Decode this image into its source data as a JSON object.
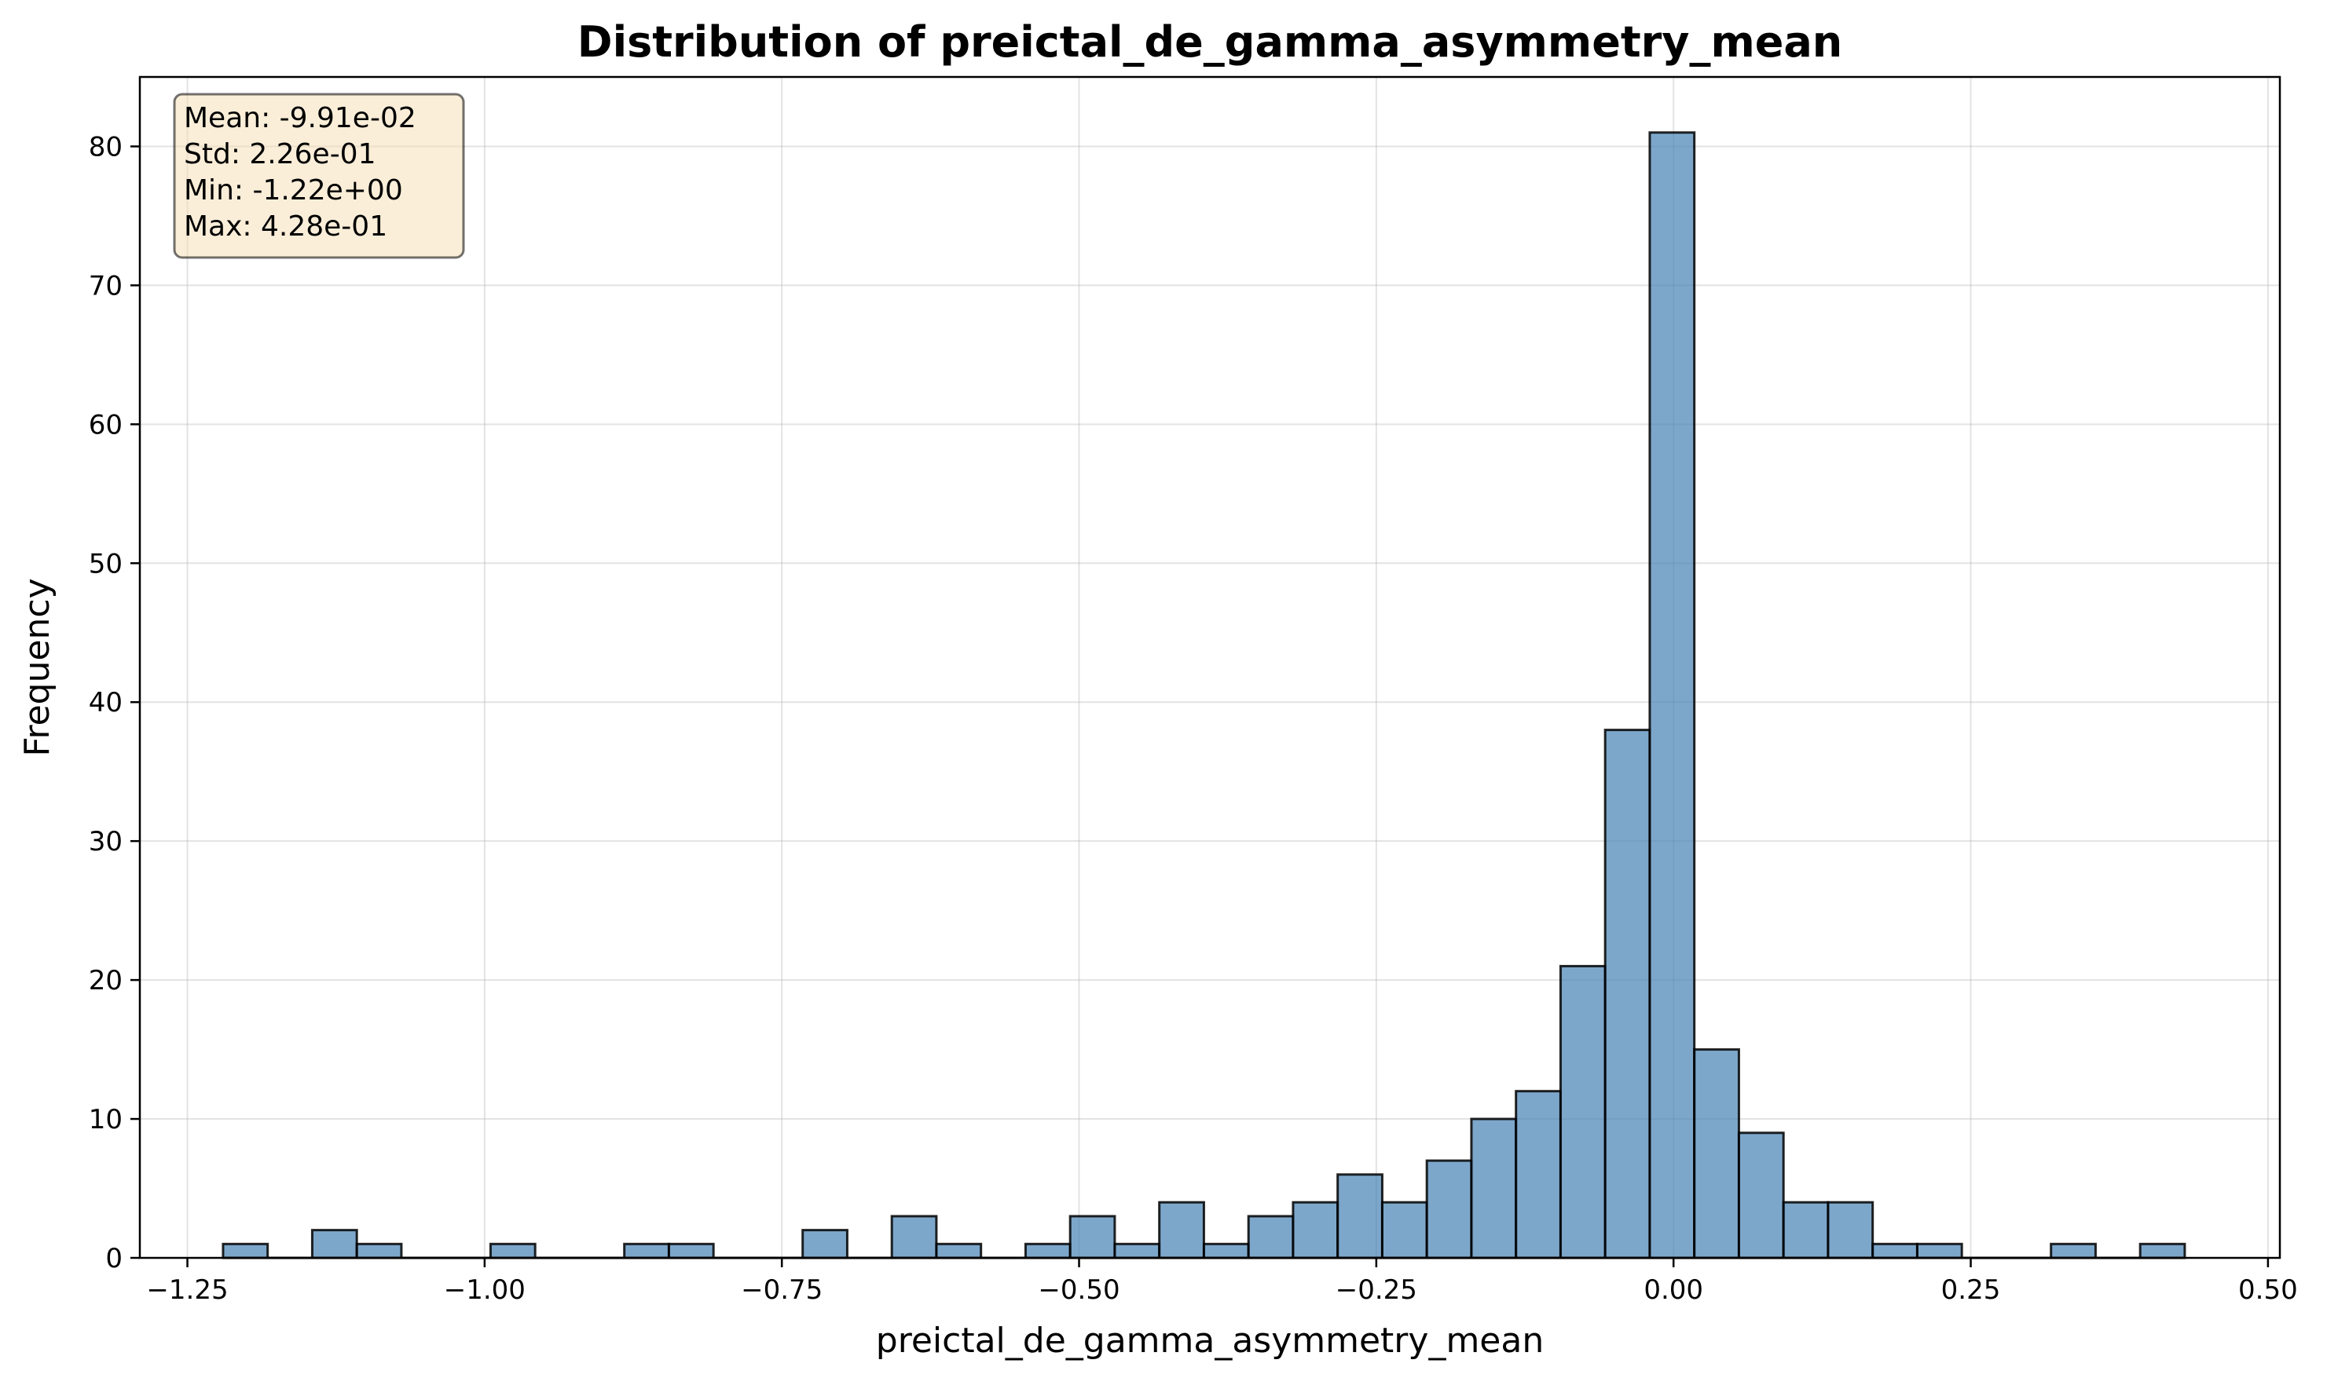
{
  "chart_data": {
    "type": "bar",
    "title": "Distribution of preictal_de_gamma_asymmetry_mean",
    "xlabel": "preictal_de_gamma_asymmetry_mean",
    "ylabel": "Frequency",
    "xlim": [
      -1.29,
      0.51
    ],
    "ylim": [
      0,
      85
    ],
    "xticks": [
      -1.25,
      -1.0,
      -0.75,
      -0.5,
      -0.25,
      0.0,
      0.25,
      0.5
    ],
    "xtick_labels": [
      "−1.25",
      "−1.00",
      "−0.75",
      "−0.50",
      "−0.25",
      "0.00",
      "0.25",
      "0.50"
    ],
    "yticks": [
      0,
      10,
      20,
      30,
      40,
      50,
      60,
      70,
      80
    ],
    "ytick_labels": [
      "0",
      "10",
      "20",
      "30",
      "40",
      "50",
      "60",
      "70",
      "80"
    ],
    "grid": true,
    "bins": {
      "start": -1.22,
      "width": 0.0375,
      "counts": [
        1,
        0,
        2,
        1,
        0,
        0,
        1,
        0,
        0,
        1,
        1,
        0,
        0,
        2,
        0,
        3,
        1,
        0,
        1,
        3,
        1,
        4,
        1,
        3,
        4,
        6,
        4,
        7,
        10,
        12,
        21,
        38,
        81,
        15,
        9,
        4,
        4,
        1,
        1,
        0,
        0,
        1,
        0,
        1
      ]
    },
    "stats_box": [
      "Mean: -9.91e-02",
      "Std: 2.26e-01",
      "Min: -1.22e+00",
      "Max: 4.28e-01"
    ],
    "colors": {
      "bar": "#4682b4",
      "stats_box": "#f5deb3"
    }
  }
}
